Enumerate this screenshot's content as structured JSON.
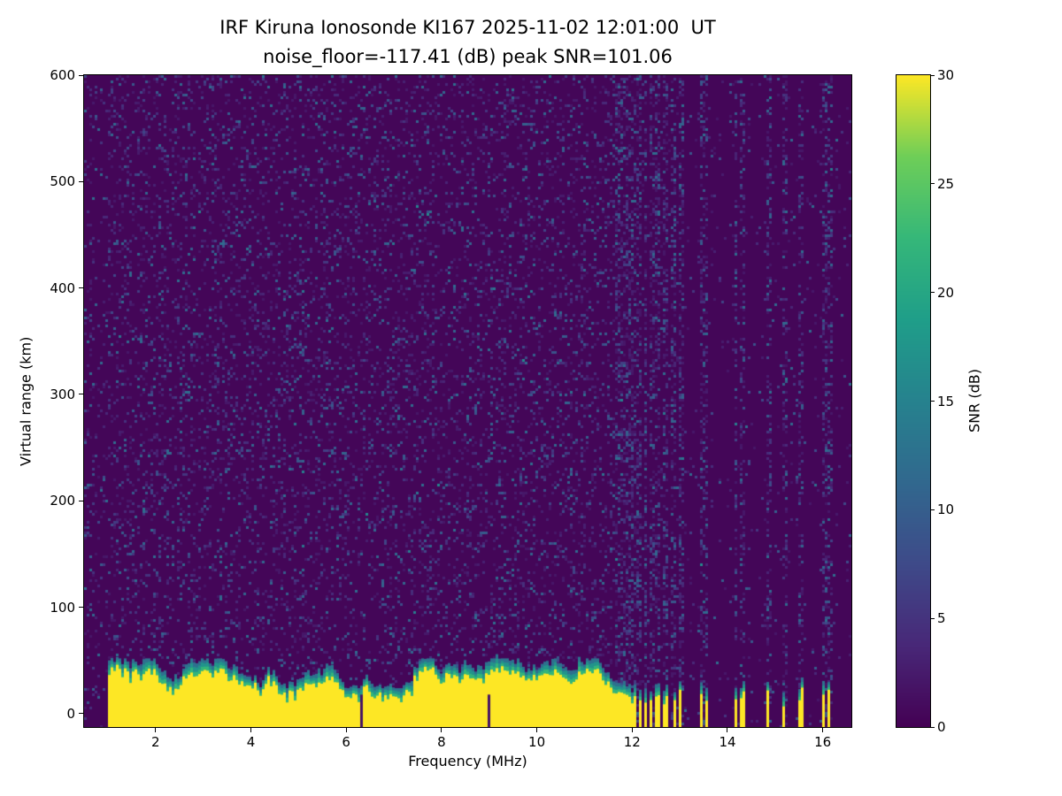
{
  "chart_data": {
    "type": "heatmap",
    "title": "IRF Kiruna Ionosonde KI167 2025-11-02 12:01:00  UT",
    "subtitle": "noise_floor=-117.41 (dB) peak SNR=101.06",
    "xlabel": "Frequency (MHz)",
    "ylabel": "Virtual range (km)",
    "colorbar_label": "SNR (dB)",
    "colormap": "viridis",
    "station": "IRF Kiruna Ionosonde KI167",
    "timestamp_ut": "2025-11-02 12:01:00",
    "noise_floor_db": -117.41,
    "peak_snr_db": 101.06,
    "xlim": [
      0.5,
      16.6
    ],
    "ylim": [
      -12.5,
      600
    ],
    "xticks": [
      2,
      4,
      6,
      8,
      10,
      12,
      14,
      16
    ],
    "yticks": [
      0,
      100,
      200,
      300,
      400,
      500,
      600
    ],
    "colorbar_range": [
      0,
      30
    ],
    "colorbar_ticks": [
      0,
      5,
      10,
      15,
      20,
      25,
      30
    ],
    "features": {
      "background_snr_db": 1,
      "speckle_density": 0.16,
      "speckle_max_db": 12,
      "ground_clutter": {
        "freq_start_mhz": 1.0,
        "freq_continuous_end_mhz": 11.62,
        "top_km_min": 24,
        "top_km_max": 56,
        "snr_db": 30
      },
      "stripe_region_mhz": [
        11.62,
        13.05
      ],
      "clutter_stripes_mhz": [
        11.65,
        11.71,
        11.77,
        11.83,
        11.9,
        11.98,
        12.07,
        12.17,
        12.28,
        12.4,
        12.54,
        12.7,
        12.88,
        13.02
      ],
      "isolated_stripes_mhz": [
        13.47,
        13.56,
        14.18,
        14.31,
        14.86,
        15.19,
        15.54,
        16.03,
        16.14
      ],
      "notches_mhz": [
        6.33,
        8.98
      ],
      "quiet_above_mhz": 13.05
    }
  }
}
